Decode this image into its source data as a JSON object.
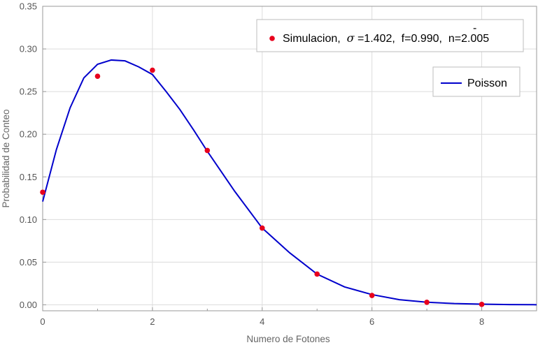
{
  "chart_data": {
    "type": "scatter",
    "xlabel": "Numero de Fotones",
    "ylabel": "Probabilidad de Conteo",
    "xlim": [
      0,
      9
    ],
    "ylim": [
      -0.007,
      0.35
    ],
    "x_ticks": [
      0,
      2,
      4,
      6,
      8
    ],
    "x_tick_labels": [
      "0",
      "2",
      "4",
      "6",
      "8"
    ],
    "y_ticks": [
      0.0,
      0.05,
      0.1,
      0.15,
      0.2,
      0.25,
      0.3,
      0.35
    ],
    "y_tick_labels": [
      "0.00",
      "0.05",
      "0.10",
      "0.15",
      "0.20",
      "0.25",
      "0.30",
      "0.35"
    ],
    "grid": true,
    "legend_position": "top-right",
    "series": [
      {
        "name": "Simulacion, σ =1.402, f=0.990, n̄=2.005",
        "kind": "scatter",
        "color": "#e8001c",
        "x": [
          0,
          1,
          2,
          3,
          4,
          5,
          6,
          7,
          8
        ],
        "y": [
          0.132,
          0.268,
          0.275,
          0.181,
          0.09,
          0.036,
          0.011,
          0.003,
          0.0005
        ]
      },
      {
        "name": "Poisson",
        "kind": "line",
        "color": "#0000cc",
        "mean": 2.005,
        "x_points": [
          0.0,
          0.25,
          0.5,
          0.75,
          1.0,
          1.25,
          1.5,
          1.75,
          2.0,
          2.25,
          2.5,
          2.75,
          3.0,
          3.5,
          4.0,
          4.5,
          5.0,
          5.5,
          6.0,
          6.5,
          7.0,
          7.5,
          8.0,
          8.5,
          9.0
        ],
        "y_points": [
          0.121,
          0.182,
          0.231,
          0.266,
          0.282,
          0.287,
          0.286,
          0.279,
          0.27,
          0.25,
          0.229,
          0.205,
          0.18,
          0.133,
          0.09,
          0.061,
          0.036,
          0.021,
          0.012,
          0.006,
          0.003,
          0.0015,
          0.0008,
          0.0003,
          0.0001
        ]
      }
    ],
    "legend_entries": [
      {
        "label_prefix": "Simulacion,  ",
        "sigma_symbol": "σ",
        "label_middle": " =1.402,  f=0.990,  ",
        "nbar_symbol": "n",
        "nbar_accent": "-",
        "label_suffix": "=2.005"
      },
      {
        "label": "Poisson"
      }
    ]
  }
}
